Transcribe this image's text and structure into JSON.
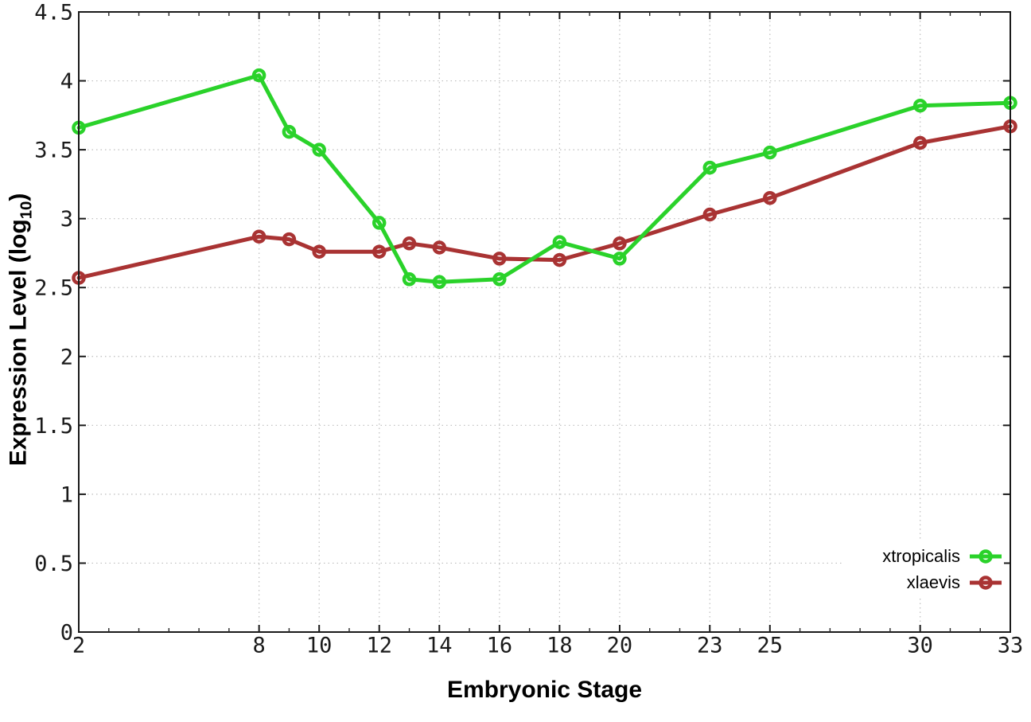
{
  "figure": {
    "background": "#ffffff",
    "ylabel_prefix": "Expression Level (log",
    "ylabel_sub": "10",
    "ylabel_suffix": ")"
  },
  "chart_data": {
    "type": "line",
    "title": "",
    "xlabel": "Embryonic Stage",
    "ylabel": "Expression Level (log10)",
    "xlim": [
      2,
      33
    ],
    "ylim": [
      0,
      4.5
    ],
    "grid": true,
    "legend_position": "bottom-right",
    "x": [
      2,
      8,
      9,
      10,
      12,
      13,
      14,
      16,
      18,
      20,
      23,
      25,
      30,
      33
    ],
    "x_major_ticks": [
      2,
      8,
      10,
      12,
      14,
      16,
      18,
      20,
      23,
      25,
      30,
      33
    ],
    "x_minor_tick_step": 1,
    "y_ticks": [
      0,
      0.5,
      1,
      1.5,
      2,
      2.5,
      3,
      3.5,
      4,
      4.5
    ],
    "series": [
      {
        "name": "xtropicalis",
        "color": "#2AD22A",
        "marker": "open-circle",
        "values": [
          3.66,
          4.04,
          3.63,
          3.5,
          2.97,
          2.56,
          2.54,
          2.56,
          2.83,
          2.71,
          3.37,
          3.48,
          3.82,
          3.84
        ]
      },
      {
        "name": "xlaevis",
        "color": "#A93333",
        "marker": "open-circle",
        "values": [
          2.57,
          2.87,
          2.85,
          2.76,
          2.76,
          2.82,
          2.79,
          2.71,
          2.7,
          2.82,
          3.03,
          3.15,
          3.55,
          3.67
        ]
      }
    ]
  }
}
